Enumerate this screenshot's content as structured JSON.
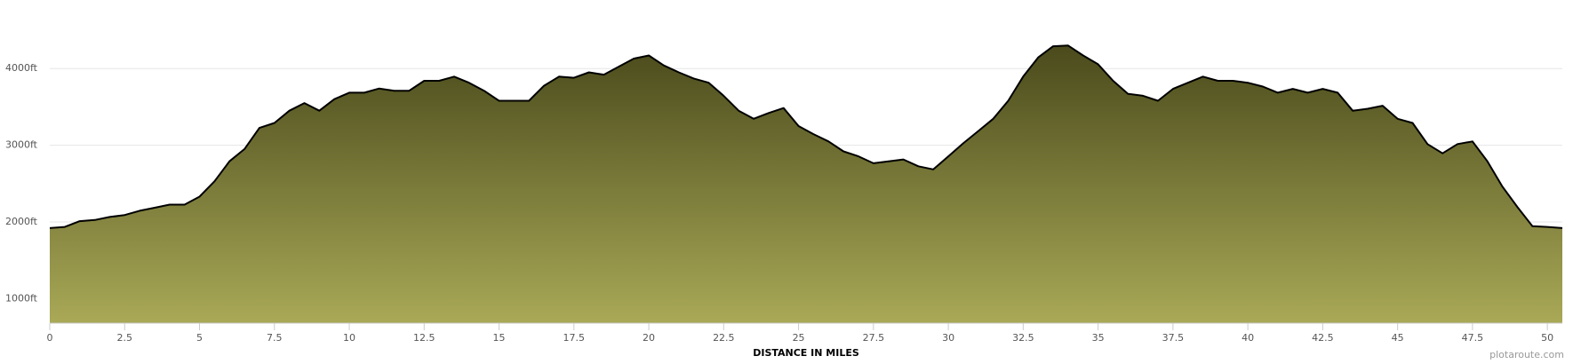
{
  "chart_data": {
    "type": "area",
    "x_label": "DISTANCE IN MILES",
    "credit": "plotaroute.com",
    "x": [
      0,
      0.5,
      1,
      1.5,
      2,
      2.5,
      3,
      3.5,
      4,
      4.5,
      5,
      5.5,
      6,
      6.5,
      7,
      7.5,
      8,
      8.5,
      9,
      9.5,
      10,
      10.5,
      11,
      11.5,
      12,
      12.5,
      13,
      13.5,
      14,
      14.5,
      15,
      15.5,
      16,
      16.5,
      17,
      17.5,
      18,
      18.5,
      19,
      19.5,
      20,
      20.5,
      21,
      21.5,
      22,
      22.5,
      23,
      23.5,
      24,
      24.5,
      25,
      25.5,
      26,
      26.5,
      27,
      27.5,
      28,
      28.5,
      29,
      29.5,
      30,
      30.5,
      31,
      31.5,
      32,
      32.5,
      33,
      33.5,
      34,
      34.5,
      35,
      35.5,
      36,
      36.5,
      37,
      37.5,
      38,
      38.5,
      39,
      39.5,
      40,
      40.5,
      41,
      41.5,
      42,
      42.5,
      43,
      43.5,
      44,
      44.5,
      45,
      45.5,
      46,
      46.5,
      47,
      47.5,
      48,
      48.5,
      49,
      49.5,
      50,
      50.5
    ],
    "values": [
      1920,
      1935,
      2010,
      2025,
      2065,
      2090,
      2145,
      2185,
      2225,
      2225,
      2330,
      2530,
      2790,
      2950,
      3225,
      3290,
      3450,
      3550,
      3450,
      3600,
      3685,
      3685,
      3740,
      3710,
      3710,
      3840,
      3840,
      3895,
      3815,
      3710,
      3580,
      3580,
      3580,
      3775,
      3895,
      3880,
      3950,
      3920,
      4025,
      4130,
      4170,
      4040,
      3950,
      3870,
      3815,
      3645,
      3450,
      3345,
      3420,
      3485,
      3250,
      3145,
      3050,
      2920,
      2855,
      2765,
      2790,
      2815,
      2725,
      2685,
      2855,
      3025,
      3185,
      3345,
      3580,
      3895,
      4145,
      4290,
      4300,
      4170,
      4055,
      3840,
      3670,
      3645,
      3580,
      3735,
      3815,
      3895,
      3840,
      3840,
      3815,
      3765,
      3685,
      3735,
      3685,
      3735,
      3685,
      3450,
      3475,
      3515,
      3345,
      3290,
      3015,
      2895,
      3015,
      3050,
      2790,
      2460,
      2195,
      1945,
      1935,
      1920
    ],
    "xlim": [
      0,
      50.5
    ],
    "xticks": [
      0,
      2.5,
      5,
      7.5,
      10,
      12.5,
      15,
      17.5,
      20,
      22.5,
      25,
      27.5,
      30,
      32.5,
      35,
      37.5,
      40,
      42.5,
      45,
      47.5,
      50
    ],
    "ylim": [
      680,
      4500
    ],
    "yticks": [
      {
        "value": 1000,
        "label": "1000ft"
      },
      {
        "value": 2000,
        "label": "2000ft"
      },
      {
        "value": 3000,
        "label": "3000ft"
      },
      {
        "value": 4000,
        "label": "4000ft"
      }
    ],
    "grid": true,
    "color": "#000000",
    "fill_top": "#4a4a1c",
    "fill_bottom": "#a9a957"
  }
}
